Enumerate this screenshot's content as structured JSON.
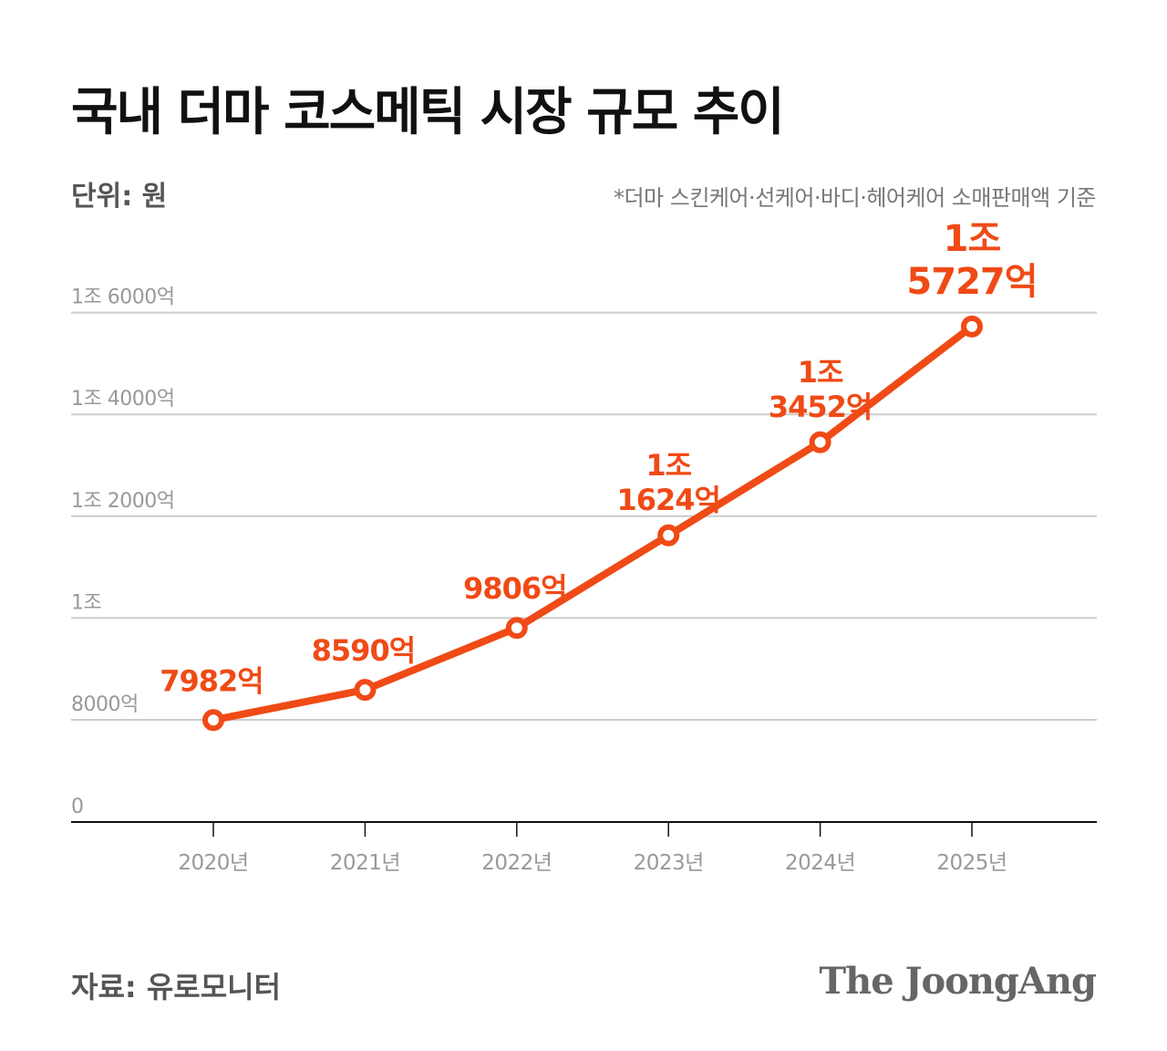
{
  "header": {
    "title": "국내 더마 코스메틱 시장 규모 추이",
    "unit": "단위: 원",
    "note": "*더마 스킨케어·선케어·바디·헤어케어 소매판매액 기준"
  },
  "footer": {
    "source": "자료: 유로모니터",
    "brand": "The JoongAng"
  },
  "colors": {
    "accent": "#f04a16",
    "grid": "#cccccc",
    "axis": "#111111",
    "tick_text": "#999999"
  },
  "chart_data": {
    "type": "line",
    "title": "국내 더마 코스메틱 시장 규모 추이",
    "x": [
      "2020년",
      "2021년",
      "2022년",
      "2023년",
      "2024년",
      "2025년"
    ],
    "series": [
      {
        "values": [
          7982,
          8590,
          9806,
          11624,
          13452,
          15727
        ],
        "labels": [
          [
            "7982억"
          ],
          [
            "8590억"
          ],
          [
            "9806억"
          ],
          [
            "1조",
            "1624억"
          ],
          [
            "1조",
            "3452억"
          ],
          [
            "1조",
            "5727억"
          ]
        ]
      }
    ],
    "yticks": [
      {
        "value": 0,
        "label": "0"
      },
      {
        "value": 8000,
        "label": "8000억"
      },
      {
        "value": 10000,
        "label": "1조"
      },
      {
        "value": 12000,
        "label": "1조 2000억"
      },
      {
        "value": 14000,
        "label": "1조 4000억"
      },
      {
        "value": 16000,
        "label": "1조 6000억"
      }
    ],
    "ylim": [
      0,
      16000
    ],
    "y_axis_break": true,
    "grid": true,
    "legend": "none"
  }
}
